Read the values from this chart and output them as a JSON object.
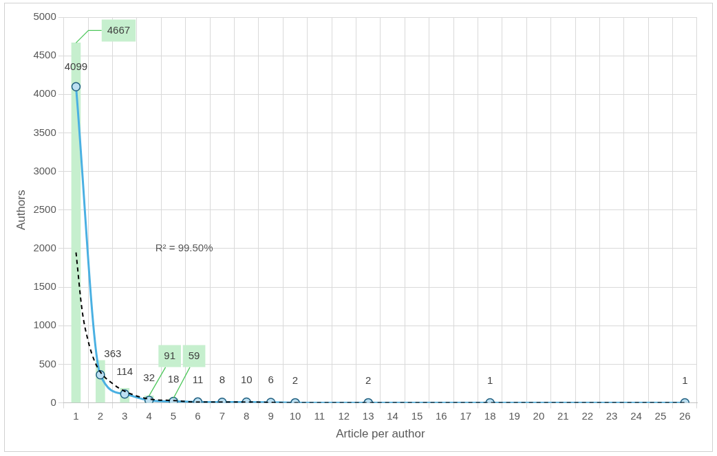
{
  "chart_data": {
    "type": "bar",
    "xlabel": "Article per author",
    "ylabel": "Authors",
    "xlim": [
      0.5,
      26.5
    ],
    "xticks": [
      1,
      2,
      3,
      4,
      5,
      6,
      7,
      8,
      9,
      10,
      11,
      12,
      13,
      14,
      15,
      16,
      17,
      18,
      19,
      20,
      21,
      22,
      23,
      24,
      25,
      26
    ],
    "ylim": [
      0,
      5000
    ],
    "yticks": [
      0,
      500,
      1000,
      1500,
      2000,
      2500,
      3000,
      3500,
      4000,
      4500,
      5000
    ],
    "series": [
      {
        "color": "#c6efce",
        "x": [
          1,
          2,
          3,
          4,
          5
        ],
        "values": [
          4667,
          550,
          190,
          91,
          59
        ],
        "value_labels": [
          "4667",
          null,
          null,
          "91",
          "59"
        ]
      },
      {
        "type": "line",
        "color": "#4ab0e2",
        "marker": "circle",
        "x": [
          1,
          2,
          3,
          4,
          5,
          6,
          7,
          8,
          9,
          10,
          13,
          18,
          26
        ],
        "values": [
          4099,
          363,
          114,
          32,
          18,
          11,
          8,
          10,
          6,
          2,
          2,
          1,
          1
        ],
        "value_labels": [
          "4099",
          "363",
          "114",
          "32",
          "18",
          "11",
          "8",
          "10",
          "6",
          "2",
          "2",
          "1",
          "1"
        ]
      },
      {
        "type": "line",
        "color": "#000000",
        "marker": "none",
        "line_style": "dashed",
        "x": [
          1,
          1.25,
          1.5,
          1.75,
          2,
          2.5,
          3,
          4,
          5,
          6,
          8,
          10,
          13,
          18,
          26
        ],
        "values": [
          1950,
          1200,
          800,
          550,
          400,
          250,
          150,
          50,
          30,
          10,
          10,
          0,
          0,
          0,
          0
        ]
      }
    ],
    "annotations": [
      "R² = 99.50%"
    ],
    "grid": true,
    "legend": false
  }
}
